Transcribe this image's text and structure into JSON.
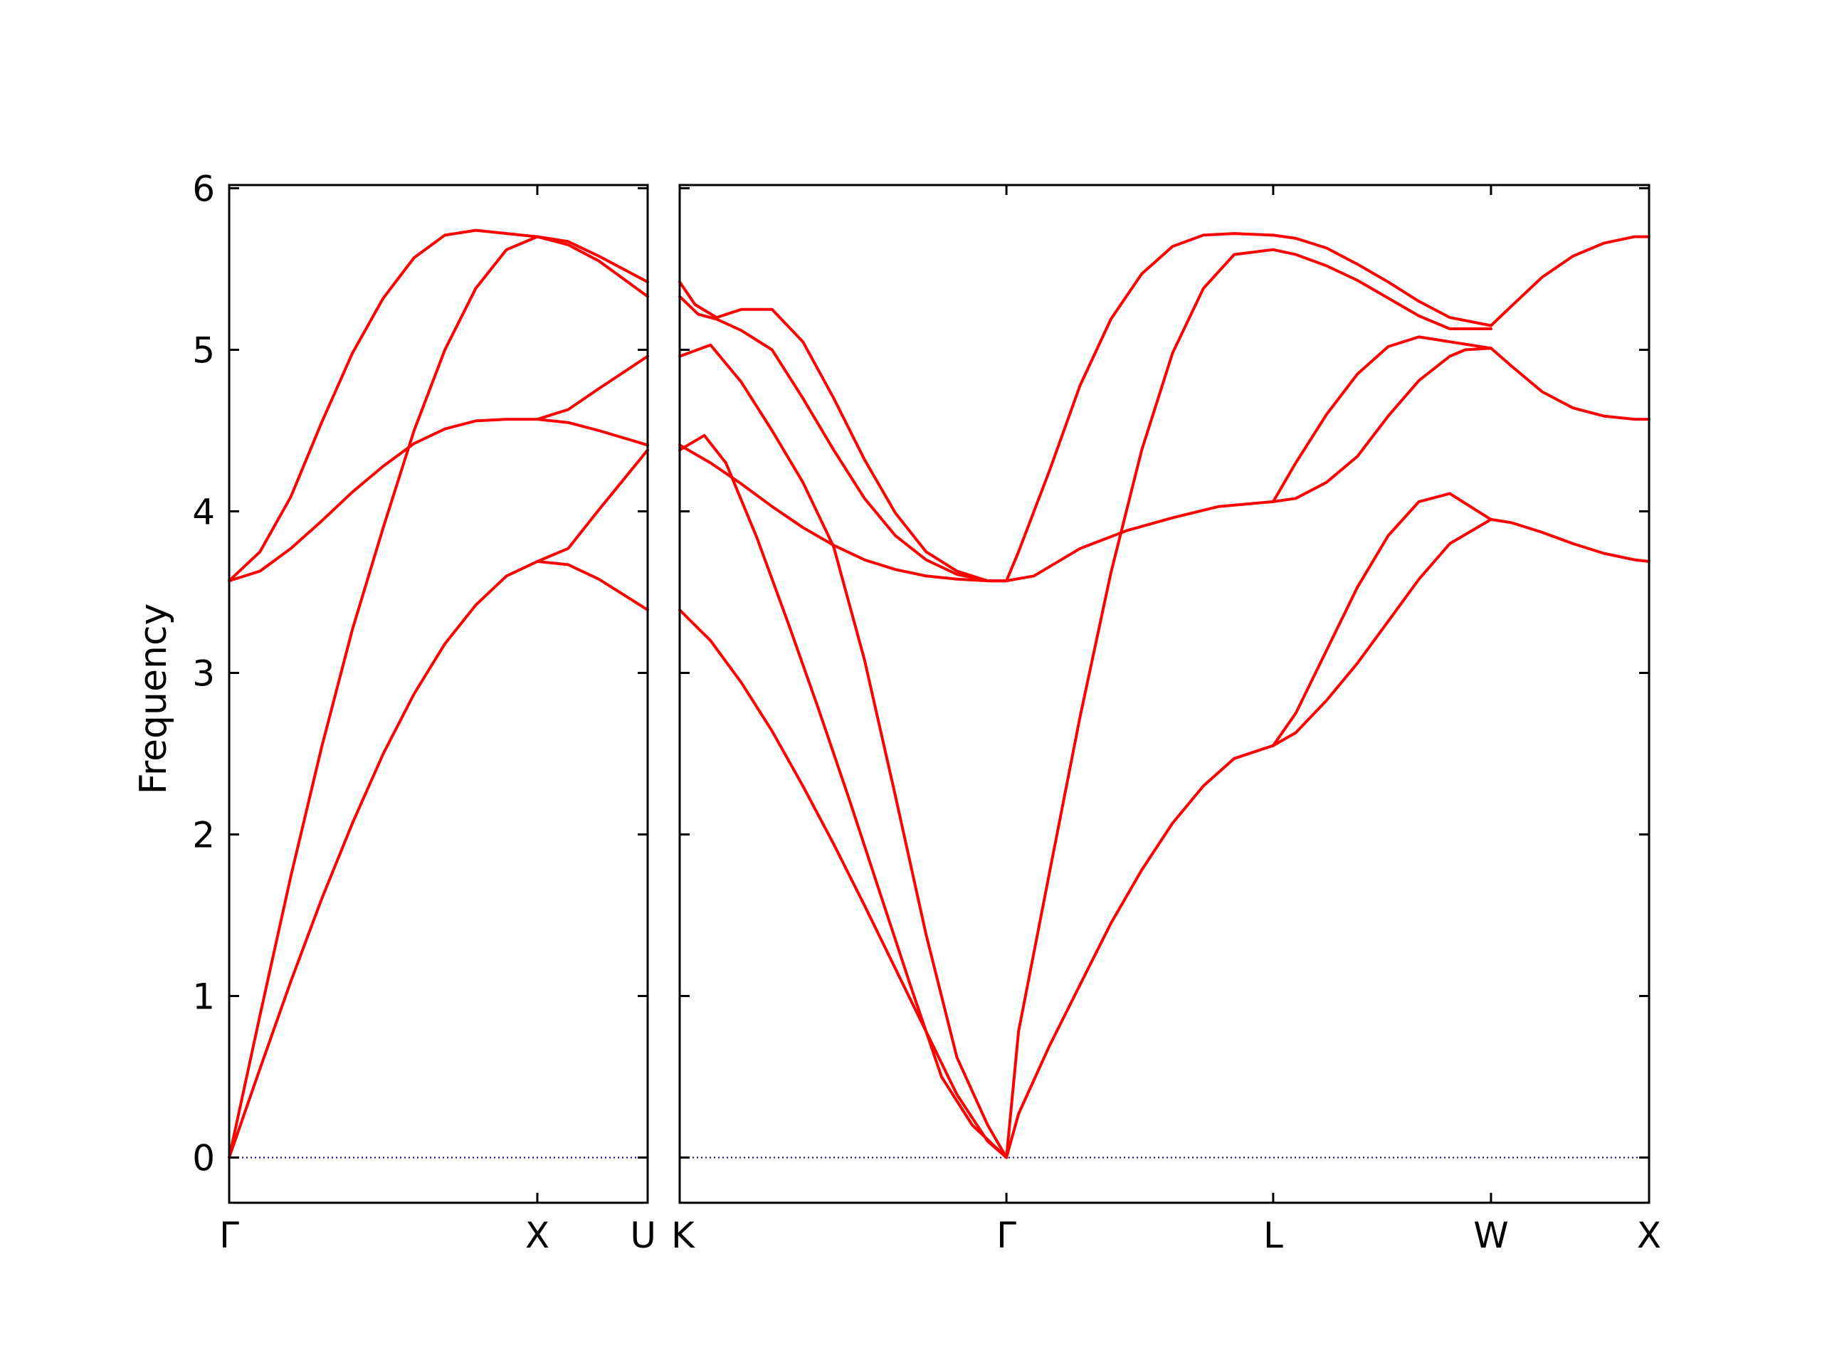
{
  "chart_data": {
    "type": "line",
    "ylabel": "Frequency",
    "ylim": [
      -0.28,
      6.02
    ],
    "y_ticks": [
      "0",
      "1",
      "2",
      "3",
      "4",
      "5",
      "6"
    ],
    "y_tick_values": [
      0,
      1,
      2,
      3,
      4,
      5,
      6
    ],
    "band_color": "#ff0000",
    "zero_line_color": "#0000aa",
    "panels": [
      {
        "id": "left",
        "xlim": [
          0,
          1.3581
        ],
        "x_ticks": [
          {
            "pos": 0,
            "label": "Γ"
          },
          {
            "pos": 1.0,
            "label": "X"
          },
          {
            "pos": 1.3581,
            "label": "U"
          }
        ],
        "series": [
          {
            "x": [
              0,
              0.1,
              0.2,
              0.3,
              0.4,
              0.5,
              0.6,
              0.7,
              0.8,
              0.9,
              1.0,
              1.1,
              1.2,
              1.3581
            ],
            "y": [
              0,
              0.55,
              1.09,
              1.6,
              2.07,
              2.5,
              2.87,
              3.18,
              3.42,
              3.6,
              3.69,
              3.67,
              3.58,
              3.39
            ]
          },
          {
            "x": [
              0,
              0.1,
              0.2,
              0.3,
              0.4,
              0.5,
              0.6,
              0.7,
              0.8,
              0.9,
              1.0,
              1.1,
              1.2,
              1.3581
            ],
            "y": [
              0,
              0.88,
              1.74,
              2.54,
              3.27,
              3.9,
              4.5,
              5.0,
              5.38,
              5.62,
              5.7,
              5.65,
              5.55,
              5.33
            ]
          },
          {
            "x": [
              0,
              0.1,
              0.2,
              0.3,
              0.4,
              0.5,
              0.6,
              0.7,
              0.8,
              0.9,
              1.0,
              1.1,
              1.2,
              1.3581
            ],
            "y": [
              3.57,
              3.63,
              3.77,
              3.94,
              4.12,
              4.28,
              4.42,
              4.51,
              4.56,
              4.57,
              4.57,
              4.55,
              4.5,
              4.41
            ]
          },
          {
            "x": [
              0,
              0.1,
              0.2,
              0.3,
              0.4,
              0.5,
              0.6,
              0.7,
              0.8,
              0.9,
              1.0,
              1.1,
              1.2,
              1.3581
            ],
            "y": [
              3.57,
              3.75,
              4.09,
              4.55,
              4.98,
              5.32,
              5.57,
              5.71,
              5.74,
              5.72,
              5.7,
              5.67,
              5.58,
              5.42
            ]
          },
          {
            "x": [
              1.0,
              1.1,
              1.2,
              1.3581
            ],
            "y": [
              3.69,
              3.77,
              4.01,
              4.38
            ]
          },
          {
            "x": [
              1.0,
              1.1,
              1.2,
              1.3581
            ],
            "y": [
              4.57,
              4.63,
              4.76,
              4.96
            ]
          }
        ]
      },
      {
        "id": "right",
        "xlim": [
          0,
          3.1469
        ],
        "x_ticks": [
          {
            "pos": 0,
            "label": "K"
          },
          {
            "pos": 1.0607,
            "label": "Γ"
          },
          {
            "pos": 1.9267,
            "label": "L"
          },
          {
            "pos": 2.6338,
            "label": "W"
          },
          {
            "pos": 3.1469,
            "label": "X"
          }
        ],
        "series": [
          {
            "x": [
              0,
              0.1,
              0.2,
              0.3,
              0.4,
              0.5,
              0.6,
              0.7,
              0.8,
              0.9,
              1.0,
              1.0607
            ],
            "y": [
              3.39,
              3.2,
              2.94,
              2.64,
              2.3,
              1.94,
              1.56,
              1.17,
              0.78,
              0.39,
              0.1,
              0
            ]
          },
          {
            "x": [
              0,
              0.08,
              0.15,
              0.25,
              0.35,
              0.45,
              0.55,
              0.65,
              0.75,
              0.85,
              0.95,
              1.0607
            ],
            "y": [
              4.38,
              4.47,
              4.3,
              3.84,
              3.32,
              2.78,
              2.22,
              1.64,
              1.06,
              0.5,
              0.2,
              0
            ]
          },
          {
            "x": [
              0,
              0.1,
              0.2,
              0.3,
              0.4,
              0.5,
              0.6,
              0.7,
              0.8,
              0.9,
              1.0,
              1.0607
            ],
            "y": [
              4.96,
              5.03,
              4.8,
              4.5,
              4.18,
              3.78,
              3.08,
              2.24,
              1.38,
              0.62,
              0.2,
              0
            ]
          },
          {
            "x": [
              0,
              0.1,
              0.2,
              0.3,
              0.4,
              0.5,
              0.6,
              0.7,
              0.8,
              0.9,
              1.0,
              1.0607
            ],
            "y": [
              4.41,
              4.3,
              4.17,
              4.03,
              3.9,
              3.79,
              3.7,
              3.64,
              3.6,
              3.58,
              3.57,
              3.57
            ]
          },
          {
            "x": [
              0,
              0.06,
              0.12,
              0.2,
              0.3,
              0.4,
              0.5,
              0.6,
              0.7,
              0.8,
              0.9,
              1.0,
              1.0607
            ],
            "y": [
              5.33,
              5.22,
              5.19,
              5.12,
              5.0,
              4.7,
              4.38,
              4.08,
              3.85,
              3.7,
              3.61,
              3.57,
              3.57
            ]
          },
          {
            "x": [
              0,
              0.05,
              0.12,
              0.2,
              0.3,
              0.4,
              0.5,
              0.6,
              0.7,
              0.8,
              0.9,
              1.0,
              1.0607
            ],
            "y": [
              5.42,
              5.28,
              5.2,
              5.25,
              5.25,
              5.05,
              4.7,
              4.32,
              3.99,
              3.75,
              3.63,
              3.57,
              3.57
            ]
          },
          {
            "x": [
              1.0607,
              1.1,
              1.2,
              1.3,
              1.4,
              1.5,
              1.6,
              1.7,
              1.8,
              1.9267
            ],
            "y": [
              0,
              0.27,
              0.69,
              1.07,
              1.45,
              1.78,
              2.07,
              2.3,
              2.47,
              2.55
            ]
          },
          {
            "x": [
              1.0607,
              1.1,
              1.2,
              1.3,
              1.4,
              1.5,
              1.6,
              1.7,
              1.8,
              1.9267
            ],
            "y": [
              0,
              0.78,
              1.76,
              2.73,
              3.62,
              4.38,
              4.98,
              5.38,
              5.59,
              5.62
            ]
          },
          {
            "x": [
              1.0607,
              1.15,
              1.3,
              1.45,
              1.6,
              1.75,
              1.9267
            ],
            "y": [
              3.57,
              3.6,
              3.77,
              3.88,
              3.96,
              4.03,
              4.06
            ]
          },
          {
            "x": [
              1.0607,
              1.1,
              1.2,
              1.3,
              1.4,
              1.5,
              1.6,
              1.7,
              1.8,
              1.9267
            ],
            "y": [
              3.57,
              3.75,
              4.25,
              4.78,
              5.19,
              5.47,
              5.64,
              5.71,
              5.72,
              5.71
            ]
          },
          {
            "x": [
              1.9267,
              2.0,
              2.1,
              2.2,
              2.3,
              2.4,
              2.5,
              2.55,
              2.6338
            ],
            "y": [
              2.55,
              2.75,
              3.14,
              3.53,
              3.85,
              4.06,
              4.11,
              4.05,
              3.95
            ]
          },
          {
            "x": [
              1.9267,
              2.0,
              2.1,
              2.2,
              2.3,
              2.4,
              2.5,
              2.6338
            ],
            "y": [
              2.55,
              2.63,
              2.83,
              3.06,
              3.32,
              3.58,
              3.8,
              3.95
            ]
          },
          {
            "x": [
              1.9267,
              2.0,
              2.1,
              2.2,
              2.3,
              2.4,
              2.5,
              2.55,
              2.6338
            ],
            "y": [
              4.06,
              4.08,
              4.18,
              4.34,
              4.59,
              4.81,
              4.96,
              5.0,
              5.01
            ]
          },
          {
            "x": [
              1.9267,
              2.0,
              2.1,
              2.2,
              2.3,
              2.4,
              2.5,
              2.6338
            ],
            "y": [
              4.06,
              4.3,
              4.6,
              4.85,
              5.02,
              5.08,
              5.05,
              5.01
            ]
          },
          {
            "x": [
              1.9267,
              2.0,
              2.1,
              2.2,
              2.3,
              2.4,
              2.5,
              2.6338
            ],
            "y": [
              5.62,
              5.59,
              5.52,
              5.43,
              5.32,
              5.21,
              5.13,
              5.13
            ]
          },
          {
            "x": [
              1.9267,
              2.0,
              2.1,
              2.2,
              2.3,
              2.4,
              2.5,
              2.6338
            ],
            "y": [
              5.71,
              5.69,
              5.63,
              5.53,
              5.42,
              5.3,
              5.2,
              5.15
            ]
          },
          {
            "x": [
              2.6338,
              2.7,
              2.8,
              2.9,
              3.0,
              3.1,
              3.1469
            ],
            "y": [
              3.95,
              3.93,
              3.87,
              3.8,
              3.74,
              3.7,
              3.69
            ]
          },
          {
            "x": [
              2.6338,
              2.7,
              2.8,
              2.9,
              3.0,
              3.1,
              3.1469
            ],
            "y": [
              5.01,
              4.9,
              4.74,
              4.64,
              4.59,
              4.57,
              4.57
            ]
          },
          {
            "x": [
              2.6338,
              2.7,
              2.8,
              2.9,
              3.0,
              3.1,
              3.1469
            ],
            "y": [
              5.15,
              5.27,
              5.45,
              5.58,
              5.66,
              5.7,
              5.7
            ]
          }
        ]
      }
    ]
  }
}
